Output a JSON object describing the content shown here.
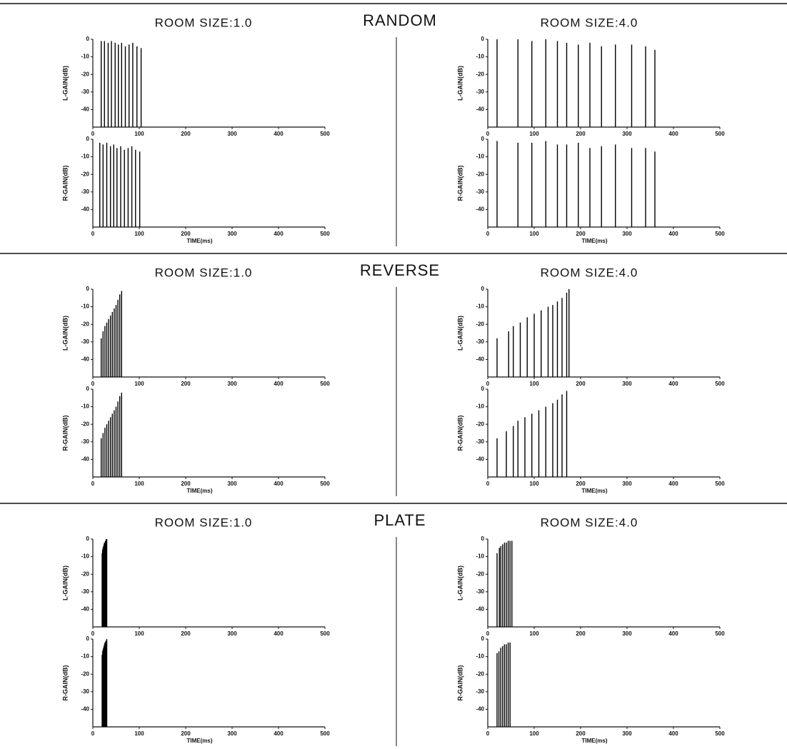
{
  "sections": [
    {
      "title": "RANDOM",
      "panels": [
        {
          "title": "ROOM SIZE:1.0",
          "charts": [
            {
              "type": "stem",
              "ylabel": "L-GAIN(dB)",
              "x": [
                18,
                25,
                33,
                40,
                48,
                55,
                62,
                70,
                78,
                86,
                95,
                104
              ],
              "values": [
                -1,
                -1,
                -2,
                -1,
                -2,
                -3,
                -2,
                -4,
                -3,
                -2,
                -4,
                -5
              ],
              "xlim": [
                0,
                500
              ],
              "ylim": [
                -50,
                0
              ],
              "xticks": [
                0,
                100,
                200,
                300,
                400,
                500
              ],
              "yticks": [
                0,
                -10,
                -20,
                -30,
                -40
              ],
              "color": "#000000"
            },
            {
              "type": "stem",
              "ylabel": "R-GAIN(dB)",
              "xlabel": "TIME(ms)",
              "x": [
                15,
                22,
                30,
                38,
                45,
                52,
                60,
                68,
                76,
                84,
                92,
                101
              ],
              "values": [
                -2,
                -3,
                -2,
                -4,
                -3,
                -5,
                -4,
                -6,
                -5,
                -4,
                -6,
                -7
              ],
              "xlim": [
                0,
                500
              ],
              "ylim": [
                -50,
                0
              ],
              "xticks": [
                0,
                100,
                200,
                300,
                400,
                500
              ],
              "yticks": [
                0,
                -10,
                -20,
                -30,
                -40
              ],
              "color": "#000000"
            }
          ]
        },
        {
          "title": "ROOM SIZE:4.0",
          "charts": [
            {
              "type": "stem",
              "ylabel": "L-GAIN(dB)",
              "x": [
                20,
                65,
                95,
                125,
                150,
                170,
                195,
                220,
                245,
                275,
                310,
                340,
                360
              ],
              "values": [
                0,
                0,
                -1,
                0,
                -1,
                -2,
                -3,
                -2,
                -4,
                -3,
                -3,
                -4,
                -6
              ],
              "xlim": [
                0,
                500
              ],
              "ylim": [
                -50,
                0
              ],
              "xticks": [
                0,
                100,
                200,
                300,
                400,
                500
              ],
              "yticks": [
                0,
                -10,
                -20,
                -30,
                -40
              ],
              "color": "#000000"
            },
            {
              "type": "stem",
              "ylabel": "R-GAIN(dB)",
              "xlabel": "TIME(ms)",
              "x": [
                20,
                65,
                95,
                125,
                150,
                170,
                195,
                220,
                245,
                275,
                310,
                340,
                360
              ],
              "values": [
                -1,
                -2,
                -2,
                -1,
                -3,
                -3,
                -2,
                -5,
                -4,
                -3,
                -5,
                -5,
                -7
              ],
              "xlim": [
                0,
                500
              ],
              "ylim": [
                -50,
                0
              ],
              "xticks": [
                0,
                100,
                200,
                300,
                400,
                500
              ],
              "yticks": [
                0,
                -10,
                -20,
                -30,
                -40
              ],
              "color": "#000000"
            }
          ]
        }
      ]
    },
    {
      "title": "REVERSE",
      "panels": [
        {
          "title": "ROOM SIZE:1.0",
          "charts": [
            {
              "type": "stem",
              "ylabel": "L-GAIN(dB)",
              "x": [
                18,
                22,
                26,
                30,
                34,
                38,
                42,
                46,
                50,
                54,
                58,
                62
              ],
              "values": [
                -28,
                -24,
                -21,
                -19,
                -17,
                -15,
                -13,
                -11,
                -9,
                -6,
                -3,
                -1
              ],
              "xlim": [
                0,
                500
              ],
              "ylim": [
                -50,
                0
              ],
              "xticks": [
                0,
                100,
                200,
                300,
                400,
                500
              ],
              "yticks": [
                0,
                -10,
                -20,
                -30,
                -40
              ],
              "color": "#000000"
            },
            {
              "type": "stem",
              "ylabel": "R-GAIN(dB)",
              "xlabel": "TIME(ms)",
              "x": [
                18,
                22,
                26,
                30,
                34,
                38,
                42,
                46,
                50,
                54,
                58,
                62
              ],
              "values": [
                -28,
                -25,
                -22,
                -20,
                -18,
                -16,
                -14,
                -12,
                -10,
                -7,
                -4,
                -2
              ],
              "xlim": [
                0,
                500
              ],
              "ylim": [
                -50,
                0
              ],
              "xticks": [
                0,
                100,
                200,
                300,
                400,
                500
              ],
              "yticks": [
                0,
                -10,
                -20,
                -30,
                -40
              ],
              "color": "#000000"
            }
          ]
        },
        {
          "title": "ROOM SIZE:4.0",
          "charts": [
            {
              "type": "stem",
              "ylabel": "L-GAIN(dB)",
              "x": [
                20,
                45,
                55,
                70,
                85,
                100,
                115,
                130,
                140,
                150,
                160,
                170,
                175
              ],
              "values": [
                -28,
                -24,
                -21,
                -19,
                -16,
                -14,
                -12,
                -10,
                -9,
                -7,
                -5,
                -2,
                0
              ],
              "xlim": [
                0,
                500
              ],
              "ylim": [
                -50,
                0
              ],
              "xticks": [
                0,
                100,
                200,
                300,
                400,
                500
              ],
              "yticks": [
                0,
                -10,
                -20,
                -30,
                -40
              ],
              "color": "#000000"
            },
            {
              "type": "stem",
              "ylabel": "R-GAIN(dB)",
              "xlabel": "TIME(ms)",
              "x": [
                20,
                40,
                55,
                65,
                80,
                95,
                110,
                125,
                140,
                150,
                160,
                170
              ],
              "values": [
                -28,
                -24,
                -21,
                -18,
                -16,
                -14,
                -12,
                -10,
                -8,
                -6,
                -3,
                -1
              ],
              "xlim": [
                0,
                500
              ],
              "ylim": [
                -50,
                0
              ],
              "xticks": [
                0,
                100,
                200,
                300,
                400,
                500
              ],
              "yticks": [
                0,
                -10,
                -20,
                -30,
                -40
              ],
              "color": "#000000"
            }
          ]
        }
      ]
    },
    {
      "title": "PLATE",
      "panels": [
        {
          "title": "ROOM SIZE:1.0",
          "charts": [
            {
              "type": "stem",
              "ylabel": "L-GAIN(dB)",
              "x": [
                20,
                21,
                22,
                23,
                24,
                25,
                26,
                27,
                28,
                29,
                30
              ],
              "values": [
                -8,
                -6,
                -5,
                -4,
                -3,
                -2,
                -2,
                -1,
                -1,
                0,
                0
              ],
              "xlim": [
                0,
                500
              ],
              "ylim": [
                -50,
                0
              ],
              "xticks": [
                0,
                100,
                200,
                300,
                400,
                500
              ],
              "yticks": [
                0,
                -10,
                -20,
                -30,
                -40
              ],
              "color": "#000000"
            },
            {
              "type": "stem",
              "ylabel": "R-GAIN(dB)",
              "xlabel": "TIME(ms)",
              "x": [
                20,
                21,
                22,
                23,
                24,
                25,
                26,
                27,
                28,
                29,
                30
              ],
              "values": [
                -9,
                -7,
                -6,
                -5,
                -4,
                -3,
                -2,
                -2,
                -1,
                -1,
                0
              ],
              "xlim": [
                0,
                500
              ],
              "ylim": [
                -50,
                0
              ],
              "xticks": [
                0,
                100,
                200,
                300,
                400,
                500
              ],
              "yticks": [
                0,
                -10,
                -20,
                -30,
                -40
              ],
              "color": "#000000"
            }
          ]
        },
        {
          "title": "ROOM SIZE:4.0",
          "charts": [
            {
              "type": "stem",
              "ylabel": "L-GAIN(dB)",
              "x": [
                20,
                25,
                28,
                32,
                36,
                40,
                44,
                48,
                52
              ],
              "values": [
                -8,
                -5,
                -4,
                -3,
                -2,
                -2,
                -1,
                -1,
                -1
              ],
              "xlim": [
                0,
                500
              ],
              "ylim": [
                -50,
                0
              ],
              "xticks": [
                0,
                100,
                200,
                300,
                400,
                500
              ],
              "yticks": [
                0,
                -10,
                -20,
                -30,
                -40
              ],
              "color": "#000000"
            },
            {
              "type": "stem",
              "ylabel": "R-GAIN(dB)",
              "xlabel": "TIME(ms)",
              "x": [
                20,
                24,
                28,
                32,
                36,
                40,
                44,
                48
              ],
              "values": [
                -8,
                -7,
                -5,
                -4,
                -3,
                -3,
                -2,
                -2
              ],
              "xlim": [
                0,
                500
              ],
              "ylim": [
                -50,
                0
              ],
              "xticks": [
                0,
                100,
                200,
                300,
                400,
                500
              ],
              "yticks": [
                0,
                -10,
                -20,
                -30,
                -40
              ],
              "color": "#000000"
            }
          ]
        }
      ]
    }
  ]
}
